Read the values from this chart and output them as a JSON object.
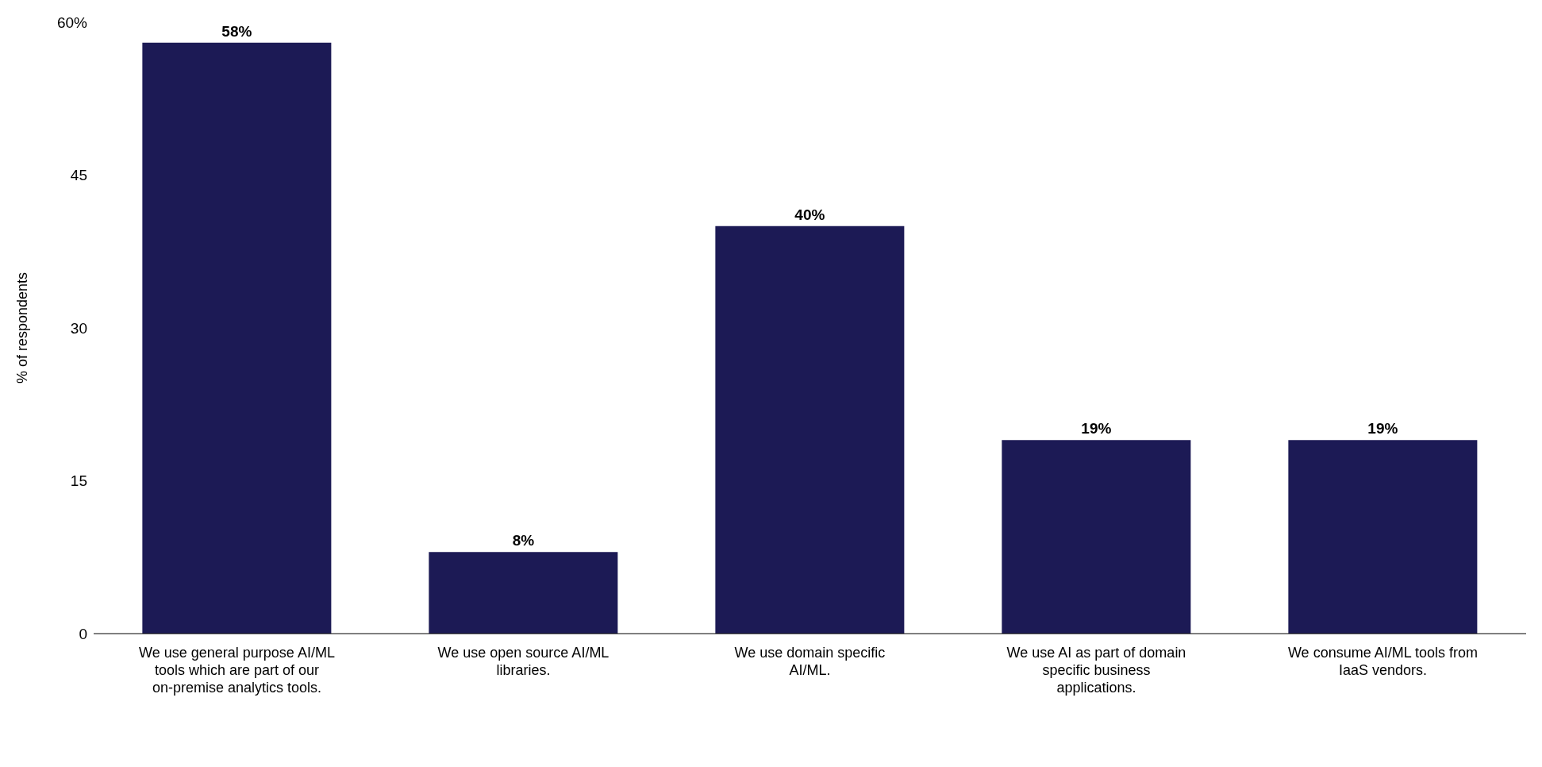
{
  "chart_data": {
    "type": "bar",
    "ylabel": "% of respondents",
    "categories": [
      "We use general purpose AI/ML tools which are part of our on-premise analytics tools.",
      "We use open source AI/ML libraries.",
      "We use domain specific AI/ML.",
      "We use AI as part of domain specific business applications.",
      "We consume AI/ML tools from IaaS vendors."
    ],
    "values": [
      58,
      8,
      40,
      19,
      19
    ],
    "value_labels": [
      "58%",
      "8%",
      "40%",
      "19%",
      "19%"
    ],
    "color": "#1c1a55",
    "ylim": [
      0,
      60
    ],
    "yticks": [
      0,
      15,
      30,
      45,
      {
        "value": 60,
        "label": "60%"
      }
    ],
    "grid": false
  }
}
